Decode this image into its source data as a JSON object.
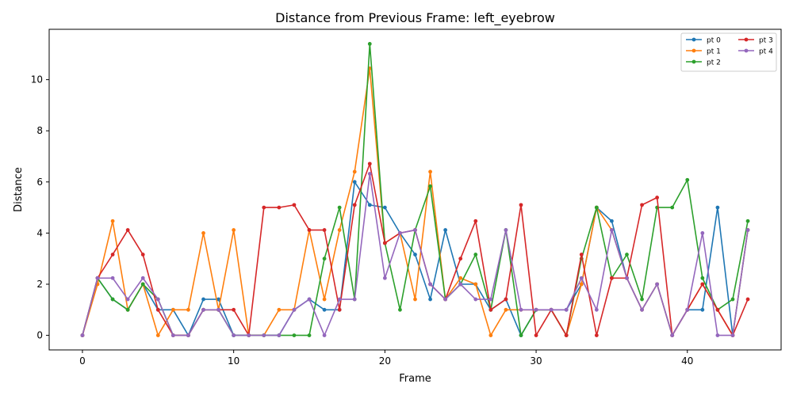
{
  "chart_data": {
    "type": "line",
    "title": "Distance from Previous Frame: left_eyebrow",
    "xlabel": "Frame",
    "ylabel": "Distance",
    "xlim": [
      -2.2,
      46.2
    ],
    "ylim": [
      -0.57,
      11.97
    ],
    "xticks": [
      0,
      10,
      20,
      30,
      40
    ],
    "yticks": [
      0,
      2,
      4,
      6,
      8,
      10
    ],
    "grid": false,
    "legend": {
      "placement": "top-right",
      "ncol": 2
    },
    "x": [
      0,
      1,
      2,
      3,
      4,
      5,
      6,
      7,
      8,
      9,
      10,
      11,
      12,
      13,
      14,
      15,
      16,
      17,
      18,
      19,
      20,
      21,
      22,
      23,
      24,
      25,
      26,
      27,
      28,
      29,
      30,
      31,
      32,
      33,
      34,
      35,
      36,
      37,
      38,
      39,
      40,
      41,
      42,
      43,
      44
    ],
    "series": [
      {
        "name": "pt 0",
        "color": "#1f77b4",
        "values": [
          0,
          2.24,
          1.41,
          1.0,
          2.0,
          1.0,
          1.0,
          0.0,
          1.41,
          1.41,
          0.0,
          0.0,
          0.0,
          0.0,
          1.0,
          1.41,
          1.0,
          1.0,
          6.0,
          5.1,
          5.0,
          4.0,
          3.16,
          1.41,
          4.12,
          2.0,
          2.0,
          1.0,
          1.41,
          0.0,
          1.0,
          1.0,
          1.0,
          2.0,
          5.0,
          4.47,
          2.24,
          1.0,
          2.0,
          0.0,
          1.0,
          1.0,
          5.0,
          0.0,
          4.12
        ]
      },
      {
        "name": "pt 1",
        "color": "#ff7f0e",
        "values": [
          0,
          2.0,
          4.47,
          1.0,
          2.0,
          0.0,
          1.0,
          1.0,
          4.0,
          1.0,
          4.12,
          0.0,
          0.0,
          1.0,
          1.0,
          4.12,
          1.41,
          4.12,
          6.4,
          10.44,
          3.61,
          4.0,
          1.41,
          6.4,
          1.41,
          2.24,
          2.0,
          0.0,
          1.0,
          1.0,
          1.0,
          1.0,
          0.0,
          2.0,
          5.0,
          4.12,
          2.24,
          1.0,
          2.0,
          0.0,
          1.0,
          2.0,
          1.0,
          0.0,
          4.12
        ]
      },
      {
        "name": "pt 2",
        "color": "#2ca02c",
        "values": [
          0,
          2.24,
          1.41,
          1.0,
          2.0,
          1.41,
          0.0,
          0.0,
          1.0,
          1.0,
          0.0,
          0.0,
          0.0,
          0.0,
          0.0,
          0.0,
          3.0,
          5.0,
          1.41,
          11.4,
          3.61,
          1.0,
          4.12,
          5.83,
          1.41,
          2.0,
          3.16,
          1.0,
          4.12,
          0.0,
          1.0,
          1.0,
          0.0,
          3.0,
          5.0,
          2.24,
          3.16,
          1.41,
          5.0,
          5.0,
          6.08,
          2.24,
          1.0,
          1.41,
          4.47
        ]
      },
      {
        "name": "pt 3",
        "color": "#d62728",
        "values": [
          0,
          2.24,
          3.16,
          4.12,
          3.16,
          1.0,
          0.0,
          0.0,
          1.0,
          1.0,
          1.0,
          0.0,
          5.0,
          5.0,
          5.1,
          4.12,
          4.12,
          1.0,
          5.1,
          6.71,
          3.61,
          4.0,
          4.12,
          2.0,
          1.41,
          3.0,
          4.47,
          1.0,
          1.41,
          5.1,
          0.0,
          1.0,
          0.0,
          3.16,
          0.0,
          2.24,
          2.24,
          5.1,
          5.39,
          0.0,
          1.0,
          2.0,
          1.0,
          0.0,
          1.41
        ]
      },
      {
        "name": "pt 4",
        "color": "#9467bd",
        "values": [
          0,
          2.24,
          2.24,
          1.41,
          2.24,
          1.41,
          0.0,
          0.0,
          1.0,
          1.0,
          0.0,
          0.0,
          0.0,
          0.0,
          1.0,
          1.41,
          0.0,
          1.41,
          1.41,
          6.32,
          2.24,
          4.0,
          4.12,
          2.0,
          1.41,
          2.0,
          1.41,
          1.41,
          4.12,
          1.0,
          1.0,
          1.0,
          1.0,
          2.24,
          1.0,
          4.12,
          2.24,
          1.0,
          2.0,
          0.0,
          1.0,
          4.0,
          0.0,
          0.0,
          4.12
        ]
      }
    ]
  }
}
